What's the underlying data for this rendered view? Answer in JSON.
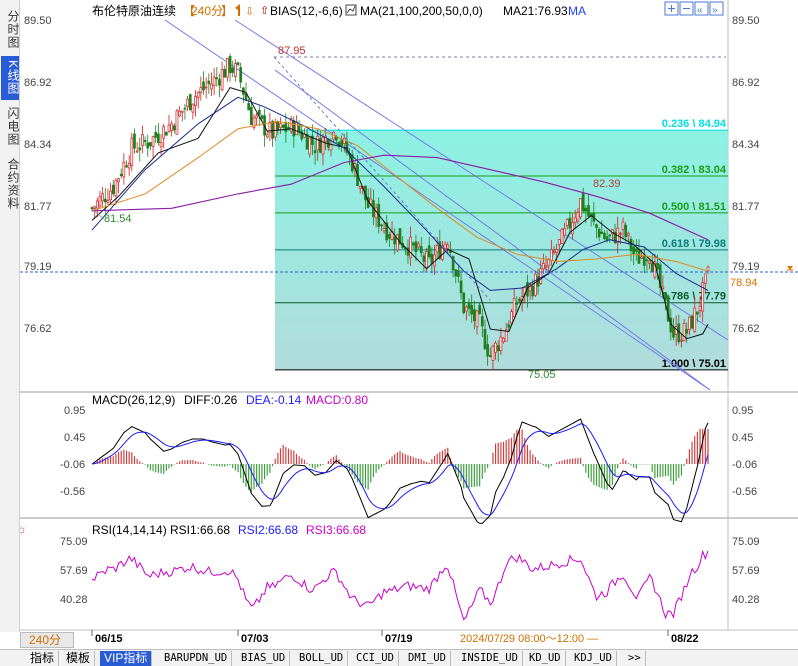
{
  "instrument": "布伦特原油连续",
  "period": "240分",
  "indicators_main": {
    "bias": "BIAS(12,-6,6)",
    "ma": "MA(21,100,200,50,0,0)",
    "ma21": "MA21:76.93",
    "ma_label": "MA"
  },
  "left_tabs": [
    "分时图",
    "K线图",
    "闪电图",
    "合约资料"
  ],
  "price_axis": {
    "ticks": [
      "89.50",
      "86.92",
      "84.34",
      "81.77",
      "79.19",
      "76.62"
    ],
    "current_price": "78.94"
  },
  "annotations": {
    "high": "87.95",
    "low": "75.05",
    "swing_high": "82.39",
    "start_low": "81.54"
  },
  "fib_levels": [
    {
      "label": "0.236 \\ 84.94",
      "value": 84.94,
      "color": "#00e0e0"
    },
    {
      "label": "0.382 \\ 83.04",
      "value": 83.04,
      "color": "#1a9e1a"
    },
    {
      "label": "0.500 \\ 81.51",
      "value": 81.51,
      "color": "#1a9e1a"
    },
    {
      "label": "0.618 \\ 79.98",
      "value": 79.98,
      "color": "#0a7a7a"
    },
    {
      "label": "0.786 \\ 77.79",
      "value": 77.79,
      "color": "#0a5a2a"
    },
    {
      "label": "1.000 \\ 75.01",
      "value": 75.01,
      "color": "#000000"
    }
  ],
  "macd": {
    "title": "MACD(26,12,9)",
    "diff": "DIFF:0.26",
    "dea": "DEA:-0.14",
    "macd": "MACD:0.80",
    "ticks": [
      "0.95",
      "0.45",
      "-0.06",
      "-0.56"
    ]
  },
  "rsi": {
    "title": "RSI(14,14,14)",
    "rsi1": "RSI1:66.68",
    "rsi2": "RSI2:66.68",
    "rsi3": "RSI3:66.68",
    "ticks": [
      "75.09",
      "57.69",
      "40.28"
    ]
  },
  "date_axis": {
    "labels": [
      "06/15",
      "07/03",
      "07/19",
      "08/22"
    ],
    "cursor": "2024/07/29 08:00～12:00 ―"
  },
  "bottom_tabs": [
    "指标",
    "模板",
    "VIP指标",
    "BARUPDN_UD",
    "BIAS_UD",
    "BOLL_UD",
    "CCI_UD",
    "DMI_UD",
    "INSIDE_UD",
    "KD_UD",
    "KDJ_UD",
    ">>"
  ],
  "chart_data": {
    "type": "candlestick",
    "close_anchors": [
      [
        0,
        81.7
      ],
      [
        8,
        82.6
      ],
      [
        15,
        84.2
      ],
      [
        22,
        84.5
      ],
      [
        30,
        85.2
      ],
      [
        38,
        86.3
      ],
      [
        45,
        86.9
      ],
      [
        52,
        87.6
      ],
      [
        55,
        87.3
      ],
      [
        60,
        85.5
      ],
      [
        68,
        84.8
      ],
      [
        76,
        85.1
      ],
      [
        84,
        84.3
      ],
      [
        92,
        84.9
      ],
      [
        98,
        83.6
      ],
      [
        104,
        81.8
      ],
      [
        112,
        80.7
      ],
      [
        120,
        80.1
      ],
      [
        127,
        79.4
      ],
      [
        134,
        80.5
      ],
      [
        140,
        77.6
      ],
      [
        146,
        76.9
      ],
      [
        150,
        75.6
      ],
      [
        155,
        76.5
      ],
      [
        160,
        77.8
      ],
      [
        166,
        78.5
      ],
      [
        172,
        79.4
      ],
      [
        178,
        80.6
      ],
      [
        184,
        82.0
      ],
      [
        189,
        81.0
      ],
      [
        194,
        80.4
      ],
      [
        200,
        80.8
      ],
      [
        205,
        79.6
      ],
      [
        210,
        79.9
      ],
      [
        215,
        78.0
      ],
      [
        219,
        76.5
      ],
      [
        224,
        76.6
      ],
      [
        228,
        77.5
      ],
      [
        232,
        78.9
      ]
    ],
    "ma_fast": [
      [
        0,
        80.8
      ],
      [
        20,
        83.3
      ],
      [
        40,
        85.2
      ],
      [
        55,
        86.3
      ],
      [
        65,
        85.9
      ],
      [
        80,
        85.1
      ],
      [
        95,
        84.2
      ],
      [
        110,
        82.6
      ],
      [
        125,
        80.9
      ],
      [
        140,
        79.1
      ],
      [
        150,
        78.3
      ],
      [
        162,
        78.4
      ],
      [
        175,
        79.2
      ],
      [
        185,
        80.0
      ],
      [
        195,
        80.4
      ],
      [
        208,
        80.1
      ],
      [
        220,
        79.0
      ],
      [
        232,
        78.3
      ]
    ],
    "ma_mid": [
      [
        0,
        81.6
      ],
      [
        20,
        82.3
      ],
      [
        40,
        83.8
      ],
      [
        55,
        85.0
      ],
      [
        70,
        85.3
      ],
      [
        85,
        85.0
      ],
      [
        100,
        84.3
      ],
      [
        115,
        83.0
      ],
      [
        130,
        81.7
      ],
      [
        145,
        80.5
      ],
      [
        160,
        79.8
      ],
      [
        175,
        79.5
      ],
      [
        190,
        79.6
      ],
      [
        205,
        79.8
      ],
      [
        220,
        79.5
      ],
      [
        232,
        79.1
      ]
    ],
    "ma_slow": [
      [
        0,
        81.6
      ],
      [
        30,
        81.7
      ],
      [
        55,
        82.3
      ],
      [
        75,
        82.7
      ],
      [
        95,
        83.6
      ],
      [
        110,
        83.9
      ],
      [
        130,
        83.8
      ],
      [
        150,
        83.3
      ],
      [
        170,
        82.8
      ],
      [
        190,
        82.2
      ],
      [
        210,
        81.5
      ],
      [
        232,
        80.4
      ]
    ],
    "ma_short": [
      [
        0,
        81.2
      ],
      [
        10,
        82.2
      ],
      [
        25,
        84.0
      ],
      [
        40,
        84.6
      ],
      [
        52,
        86.7
      ],
      [
        58,
        86.5
      ],
      [
        66,
        84.9
      ],
      [
        75,
        85.0
      ],
      [
        88,
        84.4
      ],
      [
        96,
        84.2
      ],
      [
        104,
        82.0
      ],
      [
        116,
        80.3
      ],
      [
        126,
        79.2
      ],
      [
        134,
        80.0
      ],
      [
        142,
        79.6
      ],
      [
        150,
        76.7
      ],
      [
        157,
        76.6
      ],
      [
        164,
        78.4
      ],
      [
        172,
        79.0
      ],
      [
        180,
        80.7
      ],
      [
        188,
        81.4
      ],
      [
        196,
        80.7
      ],
      [
        204,
        80.2
      ],
      [
        212,
        79.4
      ],
      [
        218,
        76.9
      ],
      [
        224,
        76.3
      ],
      [
        230,
        76.5
      ],
      [
        232,
        76.9
      ]
    ],
    "ylim": [
      75.0,
      90.1
    ],
    "bars": 233
  }
}
